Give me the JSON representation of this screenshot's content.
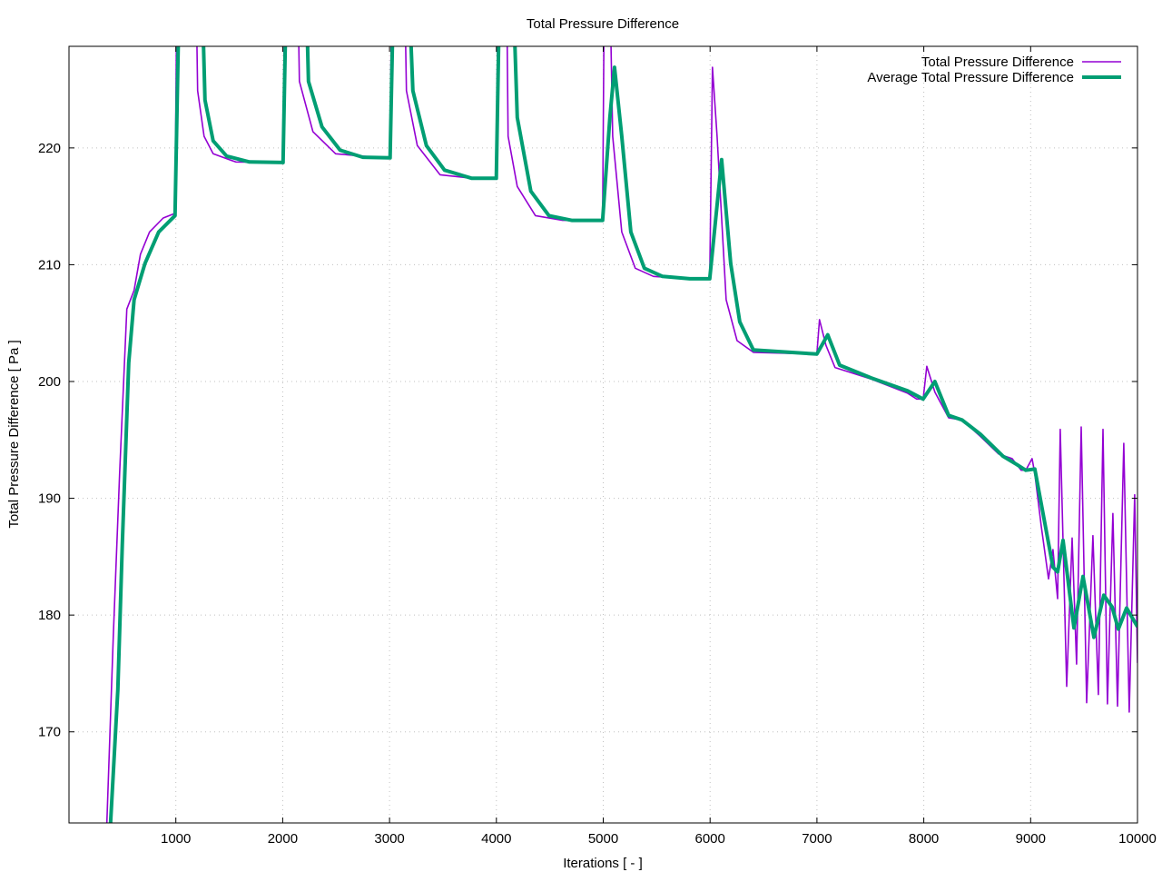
{
  "chart_data": {
    "type": "line",
    "title": "Total Pressure Difference",
    "xlabel": "Iterations [ - ]",
    "ylabel": "Total Pressure Difference [ Pa ]",
    "xlim": [
      0,
      10000
    ],
    "ylim": [
      162.2,
      228.7
    ],
    "xticks": [
      1000,
      2000,
      3000,
      4000,
      5000,
      6000,
      7000,
      8000,
      9000,
      10000
    ],
    "yticks": [
      170,
      180,
      190,
      200,
      210,
      220
    ],
    "grid": true,
    "legend_position": "top-right",
    "series": [
      {
        "name": "Total Pressure Difference",
        "color": "#9400d3",
        "points": [
          [
            346,
            150
          ],
          [
            354,
            162.2
          ],
          [
            415,
            178.2
          ],
          [
            474,
            192.2
          ],
          [
            541,
            206.2
          ],
          [
            609,
            207.8
          ],
          [
            669,
            210.9
          ],
          [
            754,
            212.8
          ],
          [
            882,
            214.0
          ],
          [
            992,
            214.4
          ],
          [
            1010,
            235
          ],
          [
            1187,
            235
          ],
          [
            1204,
            224.9
          ],
          [
            1264,
            221.0
          ],
          [
            1349,
            219.5
          ],
          [
            1561,
            218.8
          ],
          [
            2003,
            218.75
          ],
          [
            2020,
            235
          ],
          [
            2140,
            235
          ],
          [
            2156,
            225.7
          ],
          [
            2283,
            221.4
          ],
          [
            2495,
            219.5
          ],
          [
            3005,
            219.1
          ],
          [
            3022,
            235
          ],
          [
            3140,
            235
          ],
          [
            3158,
            224.9
          ],
          [
            3260,
            220.2
          ],
          [
            3472,
            217.7
          ],
          [
            3770,
            217.4
          ],
          [
            3999,
            217.4
          ],
          [
            4016,
            235
          ],
          [
            4095,
            235
          ],
          [
            4110,
            221.0
          ],
          [
            4195,
            216.7
          ],
          [
            4365,
            214.2
          ],
          [
            4620,
            213.8
          ],
          [
            4994,
            213.8
          ],
          [
            5011,
            235
          ],
          [
            5060,
            235
          ],
          [
            5088,
            221.0
          ],
          [
            5173,
            212.8
          ],
          [
            5300,
            209.7
          ],
          [
            5470,
            209.0
          ],
          [
            5810,
            208.8
          ],
          [
            5997,
            208.8
          ],
          [
            6022,
            226.9
          ],
          [
            6065,
            221.0
          ],
          [
            6150,
            207.0
          ],
          [
            6252,
            203.5
          ],
          [
            6405,
            202.5
          ],
          [
            6999,
            202.35
          ],
          [
            7024,
            205.3
          ],
          [
            7084,
            203.1
          ],
          [
            7169,
            201.2
          ],
          [
            7509,
            200.2
          ],
          [
            7849,
            199.0
          ],
          [
            7934,
            198.5
          ],
          [
            7994,
            198.5
          ],
          [
            8028,
            201.3
          ],
          [
            8104,
            199.1
          ],
          [
            8232,
            196.9
          ],
          [
            8359,
            196.7
          ],
          [
            8529,
            195.3
          ],
          [
            8699,
            193.8
          ],
          [
            8827,
            193.4
          ],
          [
            8912,
            192.4
          ],
          [
            8954,
            192.4
          ],
          [
            9014,
            193.4
          ],
          [
            9039,
            192.1
          ],
          [
            9099,
            187.6
          ],
          [
            9167,
            183.1
          ],
          [
            9209,
            185.6
          ],
          [
            9252,
            181.4
          ],
          [
            9277,
            195.9
          ],
          [
            9337,
            173.9
          ],
          [
            9388,
            186.6
          ],
          [
            9430,
            175.8
          ],
          [
            9473,
            196.1
          ],
          [
            9524,
            172.5
          ],
          [
            9583,
            186.8
          ],
          [
            9634,
            173.2
          ],
          [
            9677,
            195.9
          ],
          [
            9719,
            172.4
          ],
          [
            9770,
            188.7
          ],
          [
            9813,
            172.2
          ],
          [
            9872,
            194.7
          ],
          [
            9923,
            171.7
          ],
          [
            9974,
            190.3
          ],
          [
            10000,
            175.9
          ]
        ]
      },
      {
        "name": "Average Total Pressure Difference",
        "color": "#009e73",
        "points": [
          [
            380,
            150
          ],
          [
            389,
            162.2
          ],
          [
            457,
            173.6
          ],
          [
            499,
            186.0
          ],
          [
            559,
            201.6
          ],
          [
            609,
            207.0
          ],
          [
            711,
            210.1
          ],
          [
            839,
            212.8
          ],
          [
            992,
            214.2
          ],
          [
            1036,
            235
          ],
          [
            1240,
            235
          ],
          [
            1273,
            224.1
          ],
          [
            1349,
            220.6
          ],
          [
            1476,
            219.3
          ],
          [
            1689,
            218.8
          ],
          [
            2003,
            218.75
          ],
          [
            2037,
            235
          ],
          [
            2215,
            235
          ],
          [
            2241,
            225.7
          ],
          [
            2368,
            221.8
          ],
          [
            2538,
            219.8
          ],
          [
            2750,
            219.2
          ],
          [
            3005,
            219.15
          ],
          [
            3040,
            235
          ],
          [
            3175,
            235
          ],
          [
            3218,
            224.9
          ],
          [
            3345,
            220.2
          ],
          [
            3515,
            218.1
          ],
          [
            3770,
            217.4
          ],
          [
            3999,
            217.4
          ],
          [
            4033,
            235
          ],
          [
            4152,
            235
          ],
          [
            4195,
            222.6
          ],
          [
            4322,
            216.3
          ],
          [
            4492,
            214.2
          ],
          [
            4704,
            213.8
          ],
          [
            4994,
            213.8
          ],
          [
            5062,
            222.6
          ],
          [
            5105,
            226.9
          ],
          [
            5173,
            221.0
          ],
          [
            5258,
            212.8
          ],
          [
            5385,
            209.7
          ],
          [
            5555,
            209.0
          ],
          [
            5810,
            208.8
          ],
          [
            5997,
            208.8
          ],
          [
            6108,
            219.0
          ],
          [
            6193,
            210.1
          ],
          [
            6278,
            205.1
          ],
          [
            6405,
            202.7
          ],
          [
            6999,
            202.35
          ],
          [
            7101,
            204.0
          ],
          [
            7212,
            201.4
          ],
          [
            7509,
            200.3
          ],
          [
            7849,
            199.2
          ],
          [
            7994,
            198.5
          ],
          [
            8104,
            200.0
          ],
          [
            8232,
            197.1
          ],
          [
            8359,
            196.7
          ],
          [
            8529,
            195.5
          ],
          [
            8742,
            193.6
          ],
          [
            8869,
            192.9
          ],
          [
            8954,
            192.4
          ],
          [
            9039,
            192.5
          ],
          [
            9124,
            188.3
          ],
          [
            9209,
            184.1
          ],
          [
            9252,
            183.7
          ],
          [
            9303,
            186.4
          ],
          [
            9405,
            178.9
          ],
          [
            9490,
            183.3
          ],
          [
            9592,
            178.1
          ],
          [
            9685,
            181.7
          ],
          [
            9762,
            180.7
          ],
          [
            9821,
            178.8
          ],
          [
            9898,
            180.6
          ],
          [
            10000,
            179.0
          ]
        ]
      }
    ]
  }
}
